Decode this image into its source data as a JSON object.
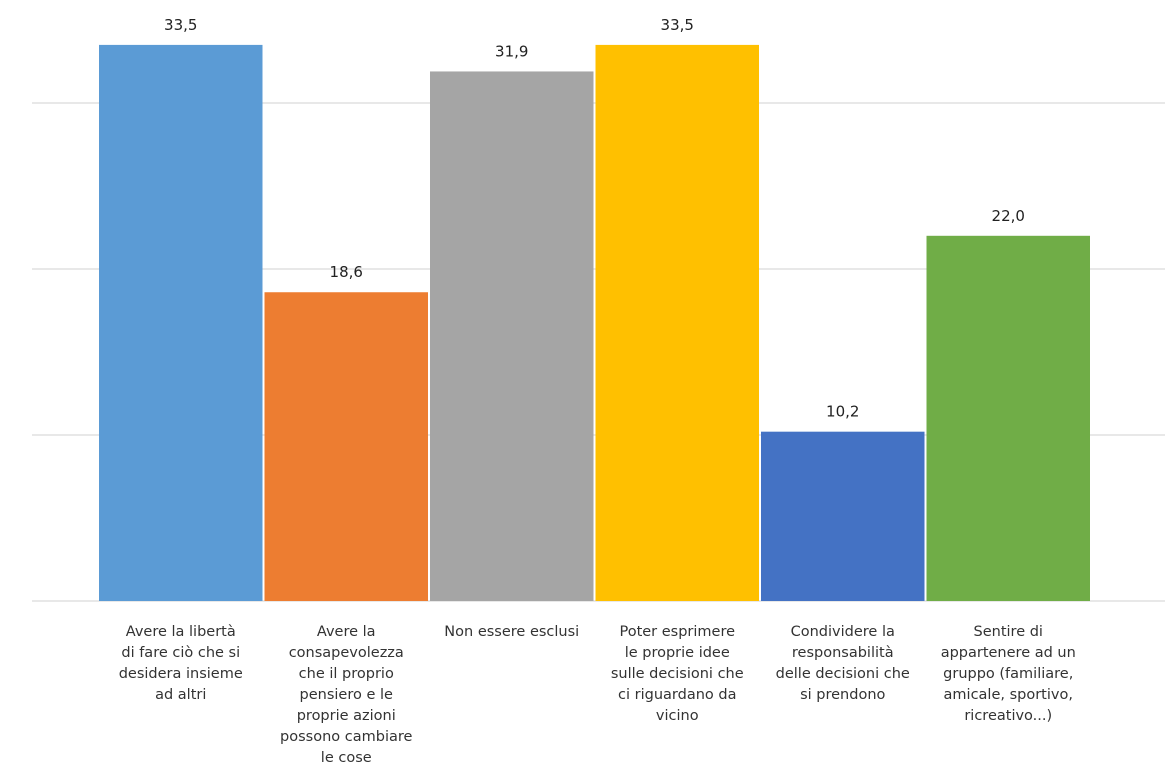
{
  "chart_data": {
    "type": "bar",
    "categories": [
      "Avere la libertà\ndi fare ciò che si\ndesidera insieme\nad altri",
      "Avere la\nconsapevolezza\nche il proprio\npensiero e le\nproprie azioni\npossono cambiare\nle cose",
      "Non essere esclusi",
      "Poter esprimere\nle proprie idee\nsulle decisioni che\nci riguardano da\nvicino",
      "Condividere la\nresponsabilità\ndelle decisioni che\nsi prendono",
      "Sentire di\nappartenere ad un\ngruppo (familiare,\namicale, sportivo,\nricreativo...)"
    ],
    "values": [
      33.5,
      18.6,
      31.9,
      33.5,
      10.2,
      22.0
    ],
    "value_labels": [
      "33,5",
      "18,6",
      "31,9",
      "33,5",
      "10,2",
      "22,0"
    ],
    "colors": [
      "#5b9bd5",
      "#ed7d31",
      "#a5a5a5",
      "#ffc000",
      "#4472c4",
      "#70ad47"
    ],
    "ylim": [
      0,
      36
    ],
    "gridline_values": [
      0,
      10,
      20,
      30
    ],
    "grid": true,
    "legend": "none",
    "title": "",
    "xlabel": "",
    "ylabel": ""
  }
}
